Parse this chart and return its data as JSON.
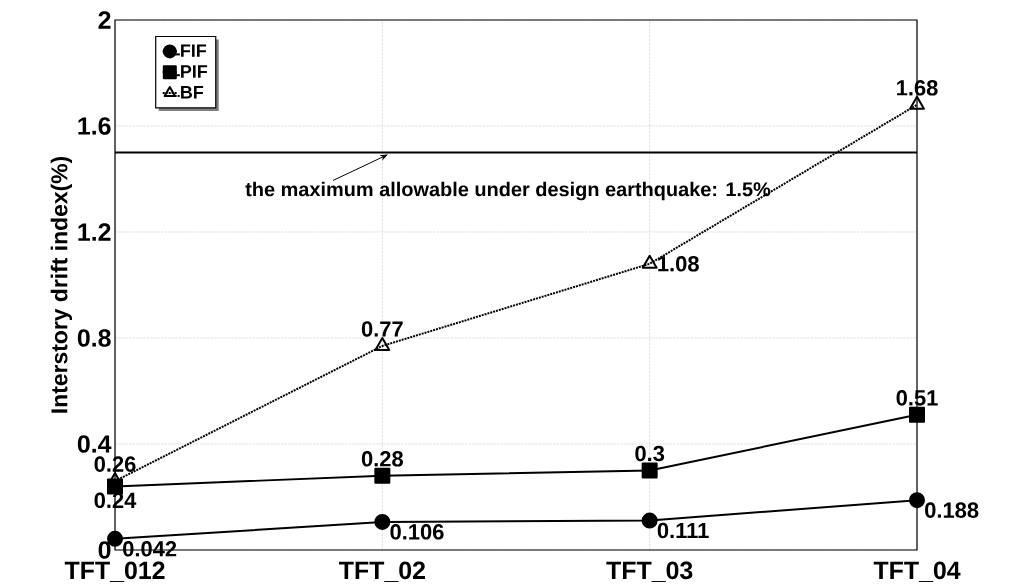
{
  "chart_data": {
    "type": "line",
    "ylabel": "Interstory drift index(%)",
    "categories": [
      "TFT_012",
      "TFT_02",
      "TFT_03",
      "TFT_04"
    ],
    "series": [
      {
        "name": "FIF",
        "color": "#000000",
        "marker": "circle",
        "line_style": "solid",
        "values": [
          0.042,
          0.106,
          0.111,
          0.188
        ]
      },
      {
        "name": "PIF",
        "color": "#000000",
        "marker": "square",
        "line_style": "solid",
        "values": [
          0.24,
          0.28,
          0.3,
          0.51
        ]
      },
      {
        "name": "BF",
        "color": "#000000",
        "marker": "triangle",
        "line_style": "dotted",
        "values": [
          0.26,
          0.77,
          1.08,
          1.68
        ]
      }
    ],
    "ylim": [
      0,
      2
    ],
    "yticks": [
      0,
      0.4,
      0.8,
      1.2,
      1.6,
      2
    ],
    "grid": true,
    "legend": "top left",
    "data_labels": true,
    "ref_lines": [
      {
        "axis": "y",
        "value": 1.5,
        "label": "the maximum allowable under design earthquake: 1.5%",
        "color": "#000000",
        "line_style": "solid"
      }
    ]
  }
}
